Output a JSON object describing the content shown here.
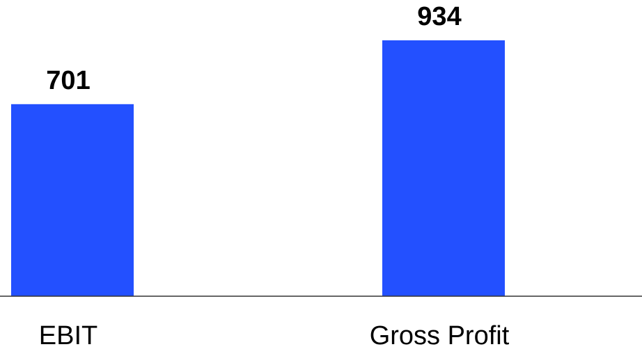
{
  "chart_data": {
    "type": "bar",
    "categories": [
      "EBIT",
      "Gross Profit"
    ],
    "values": [
      701,
      934
    ],
    "title": "",
    "xlabel": "",
    "ylabel": "",
    "ylim": [
      0,
      1000
    ],
    "grid": false,
    "legend": "none",
    "colors": {
      "bar": "#2350ff",
      "axis": "#333333",
      "text": "#000000"
    }
  }
}
